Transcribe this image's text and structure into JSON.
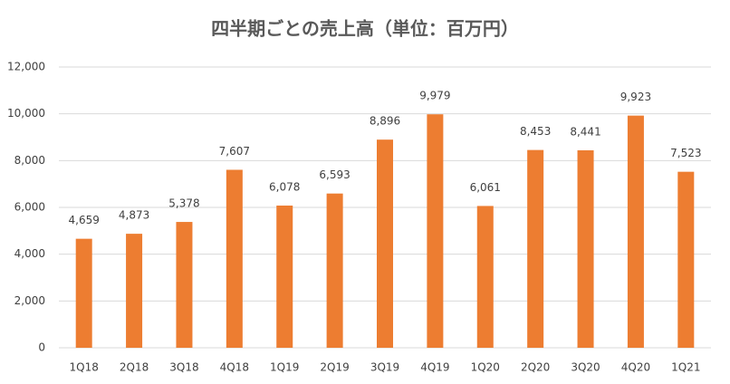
{
  "chart_data": {
    "type": "bar",
    "title": "四半期ごとの売上高（単位：百万円）",
    "categories": [
      "1Q18",
      "2Q18",
      "3Q18",
      "4Q18",
      "1Q19",
      "2Q19",
      "3Q19",
      "4Q19",
      "1Q20",
      "2Q20",
      "3Q20",
      "4Q20",
      "1Q21"
    ],
    "values": [
      4659,
      4873,
      5378,
      7607,
      6078,
      6593,
      8896,
      9979,
      6061,
      8453,
      8441,
      9923,
      7523
    ],
    "value_labels": [
      "4,659",
      "4,873",
      "5,378",
      "7,607",
      "6,078",
      "6,593",
      "8,896",
      "9,979",
      "6,061",
      "8,453",
      "8,441",
      "9,923",
      "7,523"
    ],
    "color": "#ed7d31",
    "ylim": [
      0,
      12000
    ],
    "yticks": [
      0,
      {
        "value": 2000,
        "label": "2,000"
      },
      {
        "value": 4000,
        "label": "4,000"
      },
      {
        "value": 6000,
        "label": "6,000"
      },
      {
        "value": 8000,
        "label": "8,000"
      },
      {
        "value": 10000,
        "label": "10,000"
      },
      {
        "value": 12000,
        "label": "12,000"
      }
    ],
    "grid": true
  }
}
